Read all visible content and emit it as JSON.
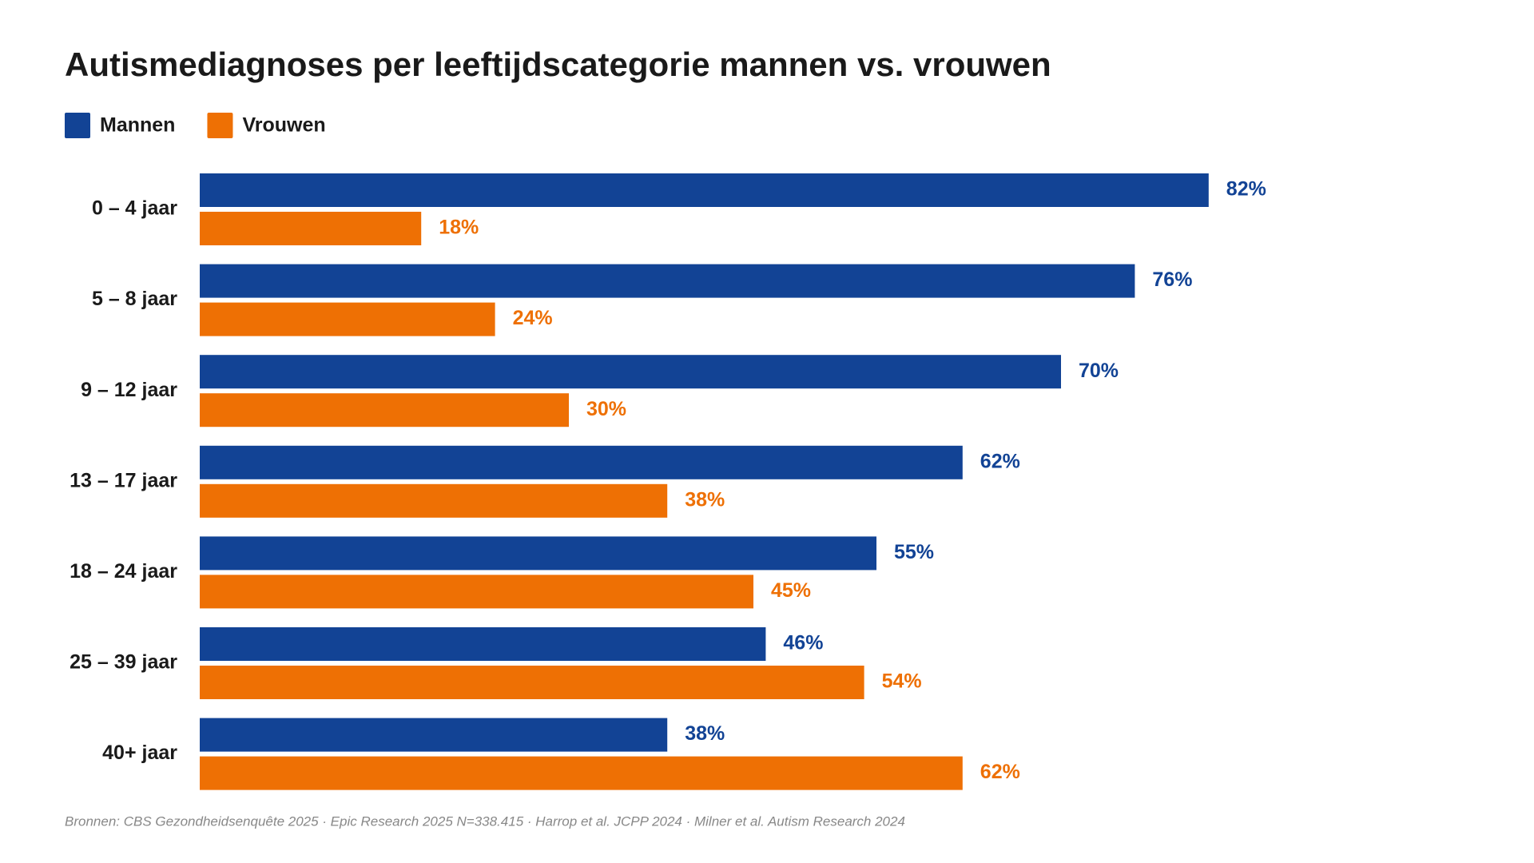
{
  "chart_data": {
    "type": "hbar",
    "title": "Autismediagnoses per leeftijdscategorie mannen vs. vrouwen",
    "categories": [
      "0 – 4 jaar",
      "5 – 8 jaar",
      "9 – 12 jaar",
      "13 – 17 jaar",
      "18 – 24 jaar",
      "25 – 39 jaar",
      "40+ jaar"
    ],
    "series": [
      {
        "name": "Mannen",
        "color": "#124395",
        "values": [
          82,
          76,
          70,
          62,
          55,
          46,
          38
        ],
        "value_labels": [
          "82%",
          "76%",
          "70%",
          "62%",
          "55%",
          "46%",
          "38%"
        ]
      },
      {
        "name": "Vrouwen",
        "color": "#ee7004",
        "values": [
          18,
          24,
          30,
          38,
          45,
          54,
          62
        ],
        "value_labels": [
          "18%",
          "24%",
          "30%",
          "38%",
          "45%",
          "54%",
          "62%"
        ]
      }
    ],
    "xlim": [
      0,
      100
    ],
    "legend": "top-left",
    "source": "Bronnen: CBS Gezondheidsenquête 2025 · Epic Research 2025 N=338.415 · Harrop et al. JCPP 2024 · Milner et al. Autism Research 2024"
  }
}
